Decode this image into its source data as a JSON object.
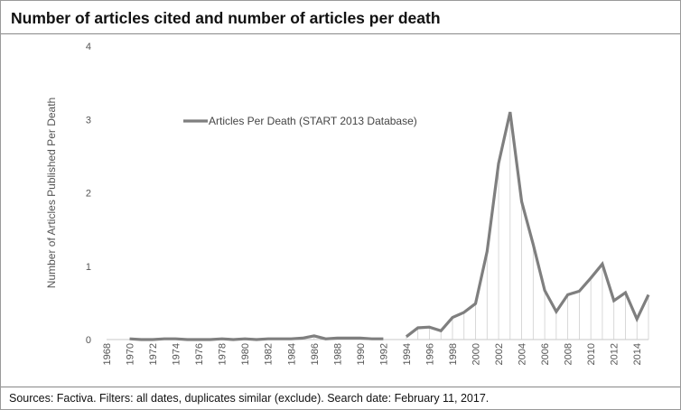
{
  "title": "Number of articles cited and number of articles per death",
  "source": "Sources: Factiva. Filters: all dates, duplicates similar (exclude). Search date: February 11, 2017.",
  "chart_data": {
    "type": "line",
    "title": "Number of articles cited and number of articles per death",
    "ylabel": "Number of Articles Published Per Death",
    "xlabel": "",
    "ylim": [
      0,
      4
    ],
    "yticks": [
      0,
      1,
      2,
      3,
      4
    ],
    "xticks": [
      1968,
      1970,
      1972,
      1974,
      1976,
      1978,
      1980,
      1982,
      1984,
      1986,
      1988,
      1990,
      1992,
      1994,
      1996,
      1998,
      2000,
      2002,
      2004,
      2006,
      2008,
      2010,
      2012,
      2014
    ],
    "xlim": [
      1968,
      2015
    ],
    "legend_position": "top-center",
    "grid": false,
    "drop_lines": true,
    "line_color": "#7f7f7f",
    "series": [
      {
        "name": "Articles Per Death (START 2013 Database)",
        "segments": [
          {
            "x": [
              1970,
              1971,
              1972,
              1973,
              1974,
              1975,
              1976,
              1977,
              1978,
              1979,
              1980,
              1981,
              1982,
              1983,
              1984,
              1985,
              1986,
              1987,
              1988,
              1989,
              1990,
              1991,
              1992
            ],
            "y": [
              0.01,
              0.0,
              0.0,
              0.01,
              0.01,
              0.0,
              0.0,
              0.0,
              0.01,
              0.0,
              0.01,
              0.0,
              0.01,
              0.01,
              0.01,
              0.02,
              0.05,
              0.01,
              0.02,
              0.02,
              0.02,
              0.01,
              0.01
            ]
          },
          {
            "x": [
              1994,
              1995,
              1996,
              1997,
              1998,
              1999,
              2000,
              2001,
              2002,
              2003,
              2004,
              2005,
              2006,
              2007,
              2008,
              2009,
              2010,
              2011,
              2012,
              2013,
              2014,
              2015
            ],
            "y": [
              0.04,
              0.16,
              0.17,
              0.12,
              0.3,
              0.37,
              0.49,
              1.2,
              2.4,
              3.1,
              1.88,
              1.3,
              0.67,
              0.38,
              0.61,
              0.66,
              0.84,
              1.03,
              0.53,
              0.64,
              0.28,
              0.61
            ]
          }
        ]
      }
    ]
  }
}
